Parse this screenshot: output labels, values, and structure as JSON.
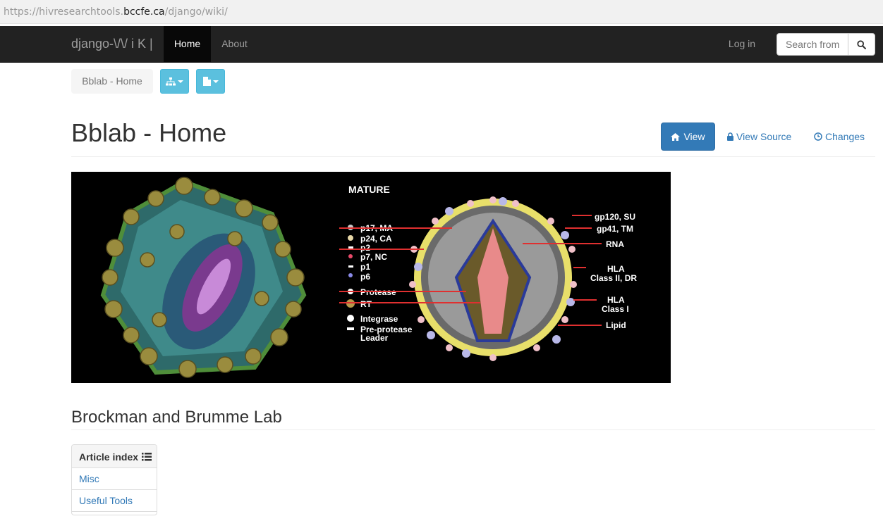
{
  "browser": {
    "url_prefix": "https://hivresearchtools.",
    "url_host": "bccfe.ca",
    "url_path": "/django/wiki/"
  },
  "navbar": {
    "brand": "django-\\/\\/ i K |",
    "home_label": "Home",
    "about_label": "About",
    "login_label": "Log in",
    "search_placeholder": "Search from"
  },
  "toolbar": {
    "breadcrumb": "Bblab - Home",
    "sitemap_icon": "sitemap-icon",
    "article_icon": "file-icon"
  },
  "article": {
    "title": "Bblab - Home",
    "view_label": "View",
    "view_source_label": "View Source",
    "changes_label": "Changes",
    "section_title": "Brockman and Brumme Lab"
  },
  "figure": {
    "heading": "MATURE",
    "left_labels": [
      "p17, MA",
      "p24, CA",
      "p2",
      "p7, NC",
      "p1",
      "p6",
      "Protease",
      "RT",
      "Integrase",
      "Pre-protease",
      "Leader"
    ],
    "right_labels": [
      "gp120, SU",
      "gp41, TM",
      "RNA",
      "HLA",
      "Class II, DR",
      "HLA",
      "Class I",
      "Lipid"
    ]
  },
  "article_index": {
    "heading": "Article index",
    "items": [
      "Misc",
      "Useful Tools"
    ]
  },
  "colors": {
    "navbar_bg": "#222222",
    "primary": "#337ab7",
    "info": "#5bc0de",
    "link": "#337ab7"
  }
}
